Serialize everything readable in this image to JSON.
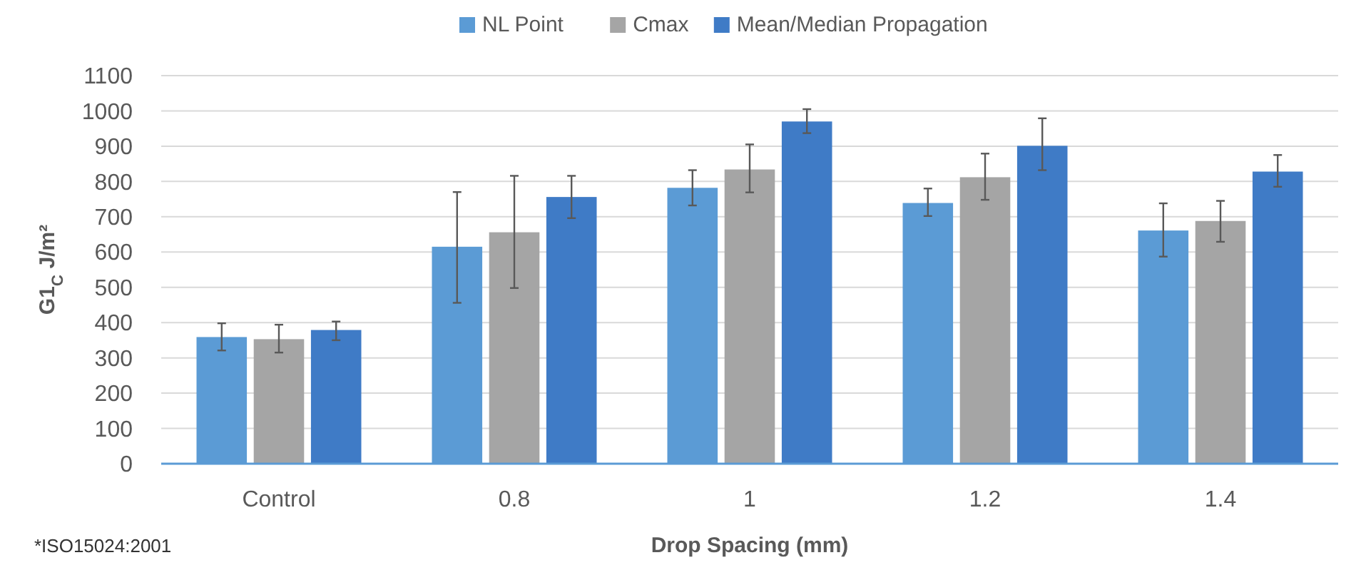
{
  "chart_data": {
    "type": "bar",
    "xlabel": "Drop Spacing (mm)",
    "ylabel": "G1$_{C}$ J/m²",
    "categories": [
      "Control",
      "0.8",
      "1",
      "1.2",
      "1.4"
    ],
    "series": [
      {
        "name": "NL Point",
        "color": "#5b9bd5",
        "values": [
          359,
          615,
          782,
          739,
          661
        ],
        "errors": [
          [
            321,
            398
          ],
          [
            456,
            770
          ],
          [
            732,
            832
          ],
          [
            702,
            780
          ],
          [
            587,
            738
          ]
        ]
      },
      {
        "name": "Cmax",
        "color": "#a5a5a5",
        "values": [
          353,
          656,
          834,
          812,
          688
        ],
        "errors": [
          [
            315,
            394
          ],
          [
            498,
            816
          ],
          [
            769,
            905
          ],
          [
            748,
            879
          ],
          [
            629,
            745
          ]
        ]
      },
      {
        "name": "Mean/Median Propagation",
        "color": "#3f7bc6",
        "values": [
          379,
          756,
          970,
          901,
          828
        ],
        "errors": [
          [
            350,
            403
          ],
          [
            696,
            816
          ],
          [
            937,
            1005
          ],
          [
            832,
            979
          ],
          [
            785,
            875
          ]
        ]
      }
    ],
    "ylim": [
      0,
      1100
    ],
    "yticks": [
      0,
      100,
      200,
      300,
      400,
      500,
      600,
      700,
      800,
      900,
      1000,
      1100
    ],
    "grid": "y",
    "legend": "top",
    "annotations": [
      "*ISO15024:2001"
    ]
  }
}
